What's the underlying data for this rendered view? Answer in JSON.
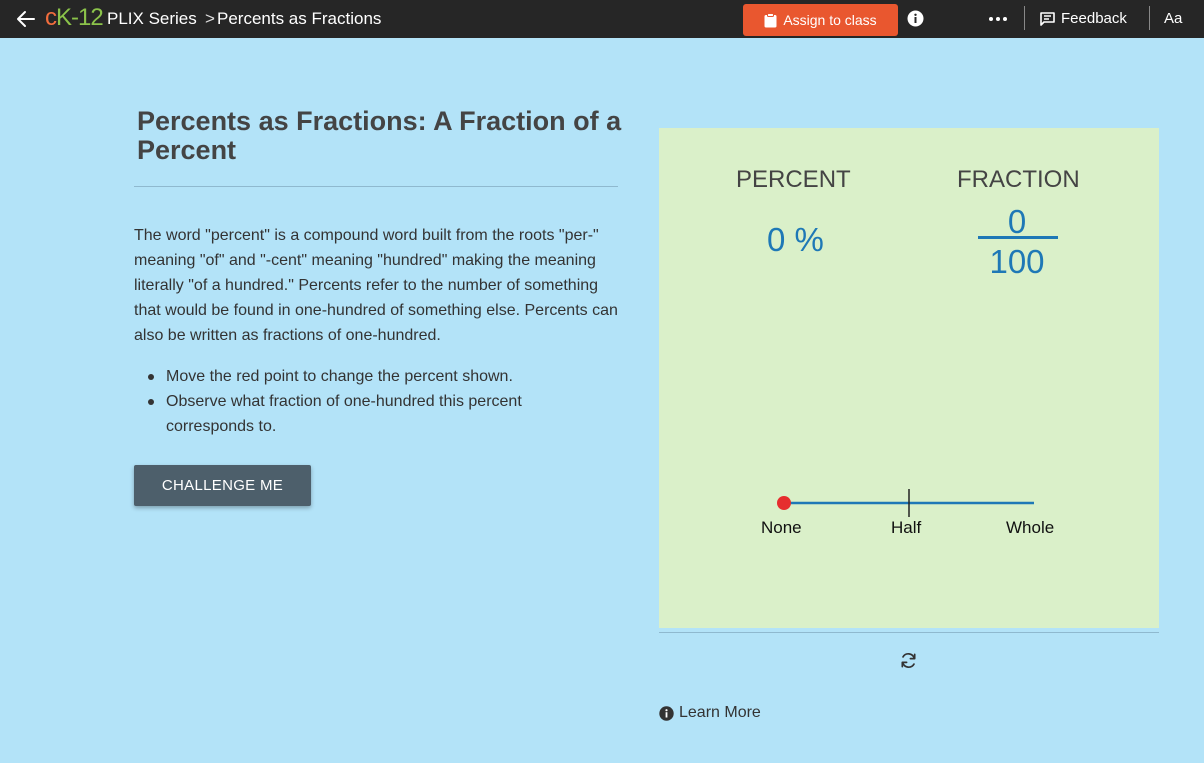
{
  "topbar": {
    "logo_c": "c",
    "logo_k": "K-12",
    "breadcrumb_series": "PLIX Series",
    "breadcrumb_sep": ">",
    "breadcrumb_title": "Percents as Fractions",
    "assign_label": "Assign to class",
    "feedback_label": "Feedback",
    "font_size_label": "Aa",
    "assign_color": "#e9572f"
  },
  "lesson": {
    "title": "Percents as Fractions: A Fraction of a Percent",
    "description": "The word \"percent\" is a compound word built from the roots \"per-\" meaning \"of\" and \"-cent\" meaning \"hundred\" making the meaning literally \"of a hundred.\" Percents refer to the number of something that would be found in one-hundred of something else. Percents can also be written as fractions of one-hundred.",
    "bullets": [
      "Move the red point to change the percent shown.",
      "Observe what fraction of one-hundred this percent corresponds to."
    ],
    "challenge_label": "CHALLENGE ME"
  },
  "interactive": {
    "percent_header": "PERCENT",
    "fraction_header": "FRACTION",
    "percent_value": "0 %",
    "numerator": "0",
    "denominator": "100",
    "slider_value": 0,
    "slider_labels": {
      "none": "None",
      "half": "Half",
      "whole": "Whole"
    },
    "panel_color": "#daf0c9",
    "value_color": "#1e78b6",
    "point_color": "#e62e2e"
  },
  "footer": {
    "learn_more_label": "Learn More"
  },
  "icons": {
    "back": "arrow-left-icon",
    "assign": "clipboard-icon",
    "info": "info-circle-icon",
    "more": "ellipsis-icon",
    "feedback": "message-icon",
    "reset": "refresh-icon"
  }
}
